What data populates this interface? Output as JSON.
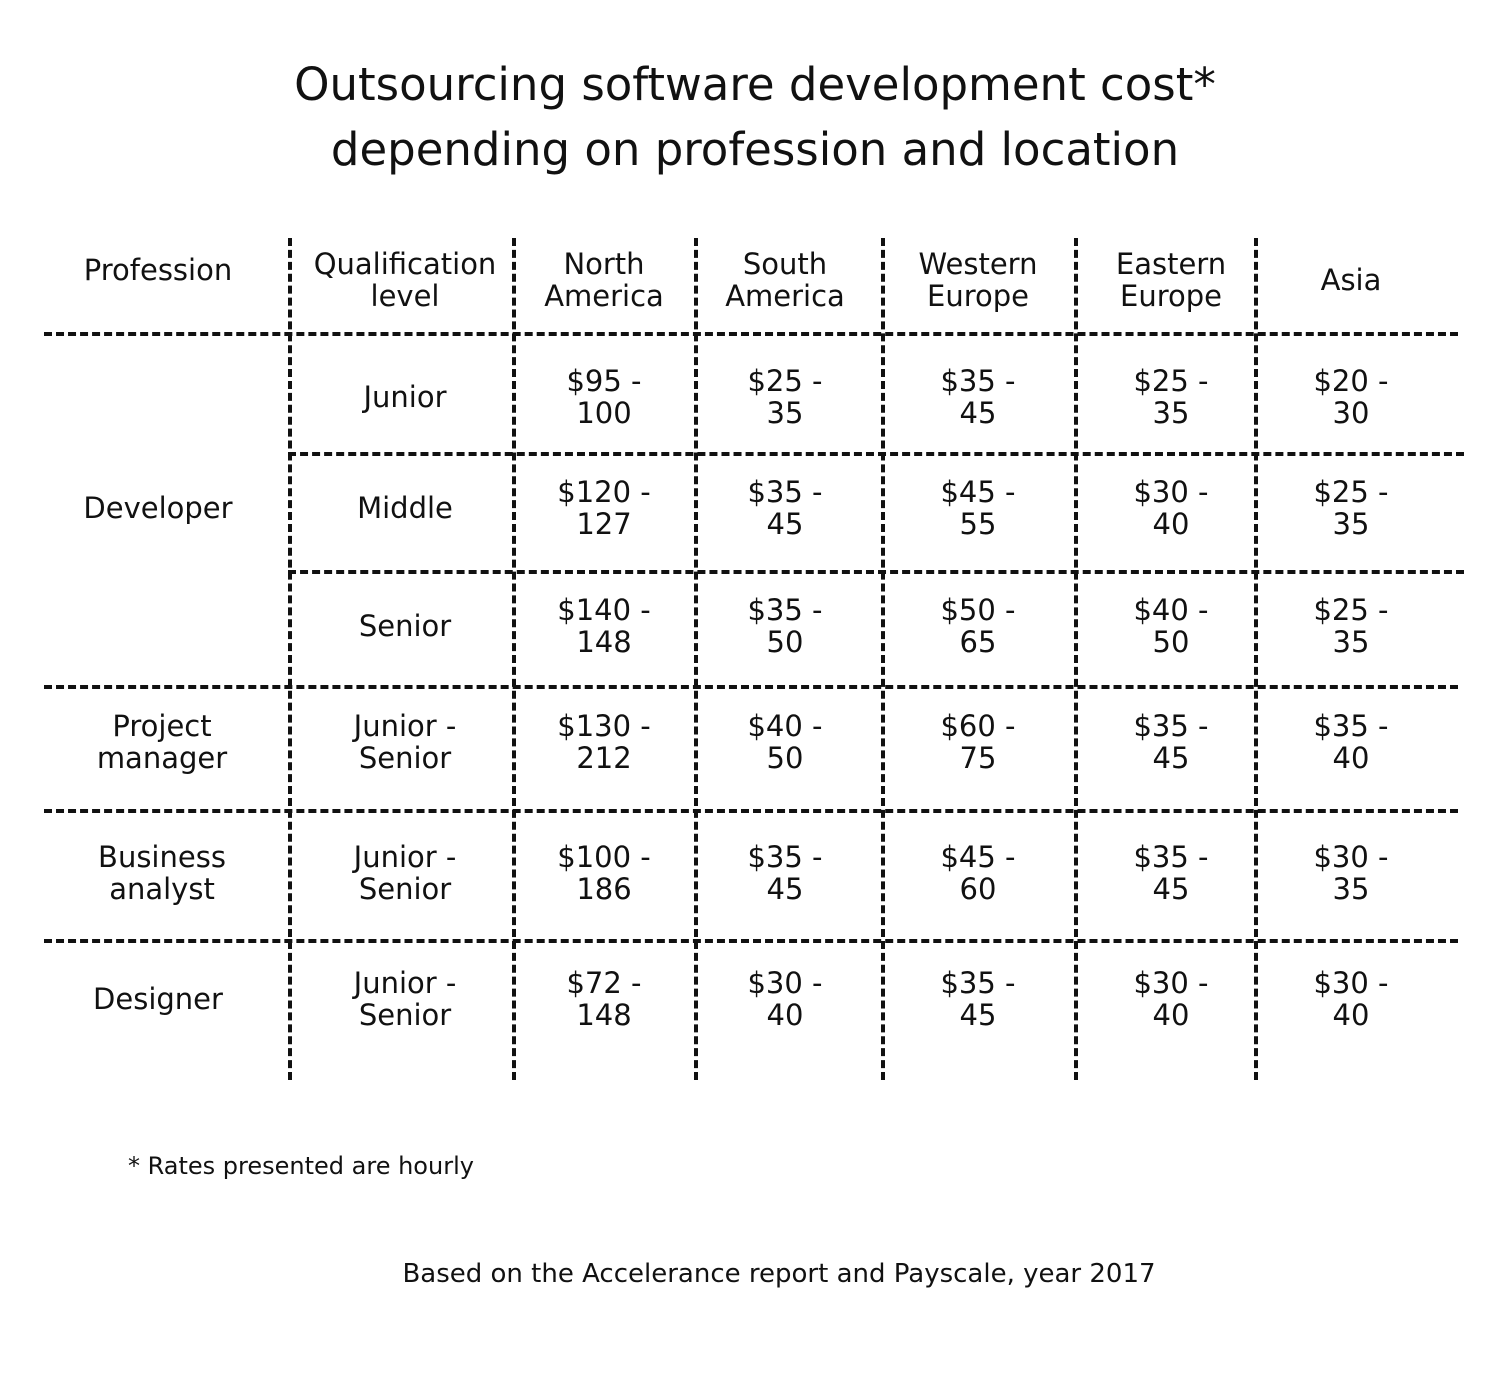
{
  "title": {
    "line1": "Outsourcing software development cost*",
    "line2": "depending on profession and location"
  },
  "columns": {
    "profession": "Profession",
    "qualification": [
      "Qualification",
      "level"
    ],
    "north_america": [
      "North",
      "America"
    ],
    "south_america": [
      "South",
      "America"
    ],
    "western_europe": [
      "Western",
      "Europe"
    ],
    "eastern_europe": [
      "Eastern",
      "Europe"
    ],
    "asia": [
      "Asia"
    ]
  },
  "professions": {
    "developer": [
      "Developer"
    ],
    "project_manager": [
      "Project",
      "manager"
    ],
    "business_analyst": [
      "Business",
      "analyst"
    ],
    "designer": [
      "Designer"
    ]
  },
  "rows": [
    {
      "level": [
        "Junior"
      ],
      "rates": [
        [
          "$95 -",
          "100"
        ],
        [
          "$25 -",
          "35"
        ],
        [
          "$35 -",
          "45"
        ],
        [
          "$25 -",
          "35"
        ],
        [
          "$20 -",
          "30"
        ]
      ]
    },
    {
      "level": [
        "Middle"
      ],
      "rates": [
        [
          "$120 -",
          "127"
        ],
        [
          "$35 -",
          "45"
        ],
        [
          "$45 -",
          "55"
        ],
        [
          "$30 -",
          "40"
        ],
        [
          "$25 -",
          "35"
        ]
      ]
    },
    {
      "level": [
        "Senior"
      ],
      "rates": [
        [
          "$140 -",
          "148"
        ],
        [
          "$35 -",
          "50"
        ],
        [
          "$50 -",
          "65"
        ],
        [
          "$40 -",
          "50"
        ],
        [
          "$25 -",
          "35"
        ]
      ]
    },
    {
      "level": [
        "Junior -",
        "Senior"
      ],
      "rates": [
        [
          "$130 -",
          "212"
        ],
        [
          "$40 -",
          "50"
        ],
        [
          "$60 -",
          "75"
        ],
        [
          "$35 -",
          "45"
        ],
        [
          "$35 -",
          "40"
        ]
      ]
    },
    {
      "level": [
        "Junior -",
        "Senior"
      ],
      "rates": [
        [
          "$100 -",
          "186"
        ],
        [
          "$35 -",
          "45"
        ],
        [
          "$45 -",
          "60"
        ],
        [
          "$35 -",
          "45"
        ],
        [
          "$30 -",
          "35"
        ]
      ]
    },
    {
      "level": [
        "Junior -",
        "Senior"
      ],
      "rates": [
        [
          "$72 -",
          "148"
        ],
        [
          "$30 -",
          "40"
        ],
        [
          "$35 -",
          "45"
        ],
        [
          "$30 -",
          "40"
        ],
        [
          "$30 -",
          "40"
        ]
      ]
    }
  ],
  "footnote": "* Rates presented are hourly",
  "source": "Based on the Accelerance report and Payscale, year 2017"
}
